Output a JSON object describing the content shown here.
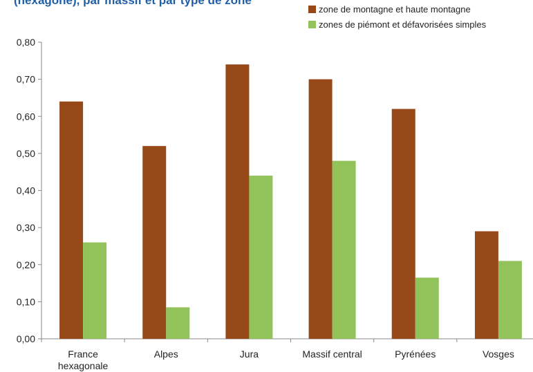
{
  "chart_data": {
    "type": "bar",
    "title": "(hexagone), par massif et par type de zone",
    "categories": [
      [
        "France",
        "hexagonale"
      ],
      [
        "Alpes"
      ],
      [
        "Jura"
      ],
      [
        "Massif central"
      ],
      [
        "Pyrénées"
      ],
      [
        "Vosges"
      ]
    ],
    "series": [
      {
        "name": "zone de montagne et haute montagne",
        "color": "#964818",
        "values": [
          0.64,
          0.52,
          0.74,
          0.7,
          0.62,
          0.29
        ]
      },
      {
        "name": "zones de piémont et défavorisées simples",
        "color": "#92c35a",
        "values": [
          0.26,
          0.085,
          0.44,
          0.48,
          0.165,
          0.21
        ]
      }
    ],
    "yticks": [
      "0,00",
      "0,10",
      "0,20",
      "0,30",
      "0,40",
      "0,50",
      "0,60",
      "0,70",
      "0,80"
    ],
    "ylim": [
      0,
      0.8
    ],
    "grid": false,
    "legend_position": "top-right",
    "xlabel": "",
    "ylabel": ""
  }
}
